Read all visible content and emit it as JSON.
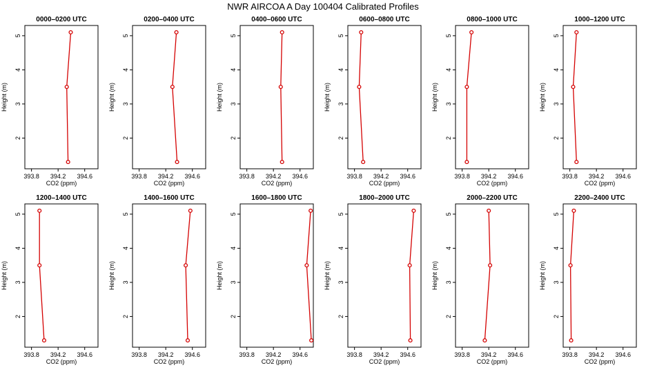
{
  "title": "NWR AIRCOA A  Day 100404  Calibrated Profiles",
  "colors": {
    "line": "#d40000",
    "marker_fill": "#ffffff",
    "axis": "#000000"
  },
  "chart_data": [
    {
      "type": "line",
      "title": "0000–0200 UTC",
      "xlabel": "CO2 (ppm)",
      "ylabel": "Height (m)",
      "xlim": [
        393.7,
        394.8
      ],
      "ylim": [
        1.1,
        5.3
      ],
      "x_ticks": [
        "393.8",
        "394.2",
        "394.6"
      ],
      "y_ticks": [
        "2",
        "3",
        "4",
        "5"
      ],
      "series": [
        {
          "name": "profile",
          "x": [
            394.39,
            394.33,
            394.35
          ],
          "y": [
            5.1,
            3.5,
            1.3
          ]
        }
      ]
    },
    {
      "type": "line",
      "title": "0200–0400 UTC",
      "xlabel": "CO2 (ppm)",
      "ylabel": "Height (m)",
      "xlim": [
        393.7,
        394.8
      ],
      "ylim": [
        1.1,
        5.3
      ],
      "x_ticks": [
        "393.8",
        "394.2",
        "394.6"
      ],
      "y_ticks": [
        "2",
        "3",
        "4",
        "5"
      ],
      "series": [
        {
          "name": "profile",
          "x": [
            394.36,
            394.3,
            394.37
          ],
          "y": [
            5.1,
            3.5,
            1.3
          ]
        }
      ]
    },
    {
      "type": "line",
      "title": "0400–0600 UTC",
      "xlabel": "CO2 (ppm)",
      "ylabel": "Height (m)",
      "xlim": [
        393.7,
        394.8
      ],
      "ylim": [
        1.1,
        5.3
      ],
      "x_ticks": [
        "393.8",
        "394.2",
        "394.6"
      ],
      "y_ticks": [
        "2",
        "3",
        "4",
        "5"
      ],
      "series": [
        {
          "name": "profile",
          "x": [
            394.33,
            394.31,
            394.33
          ],
          "y": [
            5.1,
            3.5,
            1.3
          ]
        }
      ]
    },
    {
      "type": "line",
      "title": "0600–0800 UTC",
      "xlabel": "CO2 (ppm)",
      "ylabel": "Height (m)",
      "xlim": [
        393.7,
        394.8
      ],
      "ylim": [
        1.1,
        5.3
      ],
      "x_ticks": [
        "393.8",
        "394.2",
        "394.6"
      ],
      "y_ticks": [
        "2",
        "3",
        "4",
        "5"
      ],
      "series": [
        {
          "name": "profile",
          "x": [
            393.9,
            393.87,
            393.93
          ],
          "y": [
            5.1,
            3.5,
            1.3
          ]
        }
      ]
    },
    {
      "type": "line",
      "title": "0800–1000 UTC",
      "xlabel": "CO2 (ppm)",
      "ylabel": "Height (m)",
      "xlim": [
        393.7,
        394.8
      ],
      "ylim": [
        1.1,
        5.3
      ],
      "x_ticks": [
        "393.8",
        "394.2",
        "394.6"
      ],
      "y_ticks": [
        "2",
        "3",
        "4",
        "5"
      ],
      "series": [
        {
          "name": "profile",
          "x": [
            393.94,
            393.87,
            393.87
          ],
          "y": [
            5.1,
            3.5,
            1.3
          ]
        }
      ]
    },
    {
      "type": "line",
      "title": "1000–1200 UTC",
      "xlabel": "CO2 (ppm)",
      "ylabel": "Height (m)",
      "xlim": [
        393.7,
        394.8
      ],
      "ylim": [
        1.1,
        5.3
      ],
      "x_ticks": [
        "393.8",
        "394.2",
        "394.6"
      ],
      "y_ticks": [
        "2",
        "3",
        "4",
        "5"
      ],
      "series": [
        {
          "name": "profile",
          "x": [
            393.9,
            393.85,
            393.9
          ],
          "y": [
            5.1,
            3.5,
            1.3
          ]
        }
      ]
    },
    {
      "type": "line",
      "title": "1200–1400 UTC",
      "xlabel": "CO2 (ppm)",
      "ylabel": "Height (m)",
      "xlim": [
        393.7,
        394.8
      ],
      "ylim": [
        1.1,
        5.3
      ],
      "x_ticks": [
        "393.8",
        "394.2",
        "394.6"
      ],
      "y_ticks": [
        "2",
        "3",
        "4",
        "5"
      ],
      "series": [
        {
          "name": "profile",
          "x": [
            393.92,
            393.92,
            393.99
          ],
          "y": [
            5.1,
            3.5,
            1.3
          ]
        }
      ]
    },
    {
      "type": "line",
      "title": "1400–1600 UTC",
      "xlabel": "CO2 (ppm)",
      "ylabel": "Height (m)",
      "xlim": [
        393.7,
        394.8
      ],
      "ylim": [
        1.1,
        5.3
      ],
      "x_ticks": [
        "393.8",
        "394.2",
        "394.6"
      ],
      "y_ticks": [
        "2",
        "3",
        "4",
        "5"
      ],
      "series": [
        {
          "name": "profile",
          "x": [
            394.57,
            394.5,
            394.53
          ],
          "y": [
            5.1,
            3.5,
            1.3
          ]
        }
      ]
    },
    {
      "type": "line",
      "title": "1600–1800 UTC",
      "xlabel": "CO2 (ppm)",
      "ylabel": "Height (m)",
      "xlim": [
        393.7,
        394.8
      ],
      "ylim": [
        1.1,
        5.3
      ],
      "x_ticks": [
        "393.8",
        "394.2",
        "394.6"
      ],
      "y_ticks": [
        "2",
        "3",
        "4",
        "5"
      ],
      "series": [
        {
          "name": "profile",
          "x": [
            394.76,
            394.7,
            394.77
          ],
          "y": [
            5.1,
            3.5,
            1.3
          ]
        }
      ]
    },
    {
      "type": "line",
      "title": "1800–2000 UTC",
      "xlabel": "CO2 (ppm)",
      "ylabel": "Height (m)",
      "xlim": [
        393.7,
        394.8
      ],
      "ylim": [
        1.1,
        5.3
      ],
      "x_ticks": [
        "393.8",
        "394.2",
        "394.6"
      ],
      "y_ticks": [
        "2",
        "3",
        "4",
        "5"
      ],
      "series": [
        {
          "name": "profile",
          "x": [
            394.69,
            394.63,
            394.64
          ],
          "y": [
            5.1,
            3.5,
            1.3
          ]
        }
      ]
    },
    {
      "type": "line",
      "title": "2000–2200 UTC",
      "xlabel": "CO2 (ppm)",
      "ylabel": "Height (m)",
      "xlim": [
        393.7,
        394.8
      ],
      "ylim": [
        1.1,
        5.3
      ],
      "x_ticks": [
        "393.8",
        "394.2",
        "394.6"
      ],
      "y_ticks": [
        "2",
        "3",
        "4",
        "5"
      ],
      "series": [
        {
          "name": "profile",
          "x": [
            394.2,
            394.22,
            394.14
          ],
          "y": [
            5.1,
            3.5,
            1.3
          ]
        }
      ]
    },
    {
      "type": "line",
      "title": "2200–2400 UTC",
      "xlabel": "CO2 (ppm)",
      "ylabel": "Height (m)",
      "xlim": [
        393.7,
        394.8
      ],
      "ylim": [
        1.1,
        5.3
      ],
      "x_ticks": [
        "393.8",
        "394.2",
        "394.6"
      ],
      "y_ticks": [
        "2",
        "3",
        "4",
        "5"
      ],
      "series": [
        {
          "name": "profile",
          "x": [
            393.86,
            393.81,
            393.82
          ],
          "y": [
            5.1,
            3.5,
            1.3
          ]
        }
      ]
    }
  ]
}
